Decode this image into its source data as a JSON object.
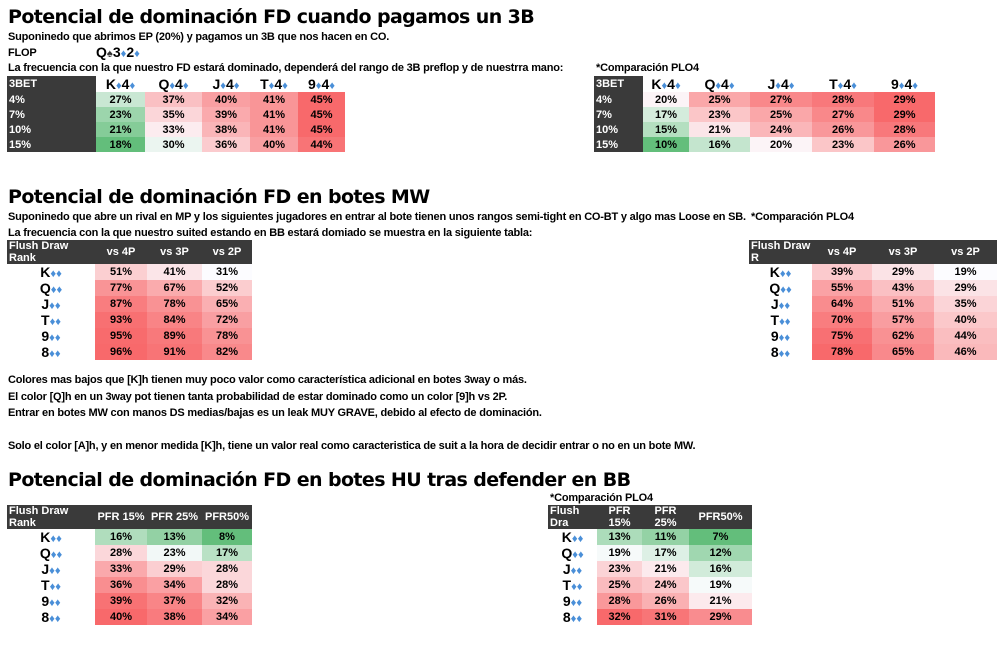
{
  "colors": {
    "green": "#63BE7B",
    "white": "#FCFCFF",
    "red": "#F8696B",
    "header": "#3a3a3a",
    "suit": "#4a8fd8"
  },
  "section1": {
    "title": "Potencial de dominación FD cuando pagamos un 3B",
    "intro": "Suponinedo que abrimos EP (20%) y pagamos un 3B que nos hacen en CO.",
    "flop_label": "FLOP",
    "flop_cards": "Q♠3♦2♦",
    "frequency_text": "La frecuencia con la que nuestro FD estará dominado, dependerá del rango de 3B preflop y de nuestrra mano:",
    "compare_label": "*Comparación PLO4",
    "main_table": {
      "scale": "green-white-red",
      "corner": "3BET",
      "columns": [
        "K♦4♦",
        "Q♦4♦",
        "J♦4♦",
        "T♦4♦",
        "9♦4♦"
      ],
      "rows": [
        {
          "label": "4%",
          "values": [
            27,
            37,
            40,
            41,
            45
          ]
        },
        {
          "label": "7%",
          "values": [
            23,
            35,
            39,
            41,
            45
          ]
        },
        {
          "label": "10%",
          "values": [
            21,
            33,
            38,
            41,
            45
          ]
        },
        {
          "label": "15%",
          "values": [
            18,
            30,
            36,
            40,
            44
          ]
        }
      ]
    },
    "compare_table": {
      "scale": "green-white-red",
      "corner": "3BET",
      "columns": [
        "K♦4♦",
        "Q♦4♦",
        "J♦4♦",
        "T♦4♦",
        "9♦4♦"
      ],
      "rows": [
        {
          "label": "4%",
          "values": [
            20,
            25,
            27,
            28,
            29
          ]
        },
        {
          "label": "7%",
          "values": [
            17,
            23,
            25,
            27,
            29
          ]
        },
        {
          "label": "10%",
          "values": [
            15,
            21,
            24,
            26,
            28
          ]
        },
        {
          "label": "15%",
          "values": [
            10,
            16,
            20,
            23,
            26
          ]
        }
      ]
    }
  },
  "section2": {
    "title": "Potencial de dominación FD en botes MW",
    "intro": "Suponinedo que abre un rival en MP y los siguientes jugadores en entrar al bote tienen unos rangos semi-tight en CO-BT y algo mas Loose en SB.",
    "frequency_text": "La frecuencia con la que nuestro suited estando en BB estará domiado se muestra en la siguiente tabla:",
    "compare_label": "*Comparación PLO4",
    "main_table": {
      "scale": "white-red",
      "corner": "Flush Draw Rank",
      "columns": [
        "vs 4P",
        "vs 3P",
        "vs 2P"
      ],
      "rows": [
        {
          "label": "K♦♦",
          "values": [
            51,
            41,
            31
          ]
        },
        {
          "label": "Q♦♦",
          "values": [
            77,
            67,
            52
          ]
        },
        {
          "label": "J♦♦",
          "values": [
            87,
            78,
            65
          ]
        },
        {
          "label": "T♦♦",
          "values": [
            93,
            84,
            72
          ]
        },
        {
          "label": "9♦♦",
          "values": [
            95,
            89,
            78
          ]
        },
        {
          "label": "8♦♦",
          "values": [
            96,
            91,
            82
          ]
        }
      ]
    },
    "compare_table": {
      "scale": "white-red",
      "corner": "Flush Draw R",
      "columns": [
        "vs 4P",
        "vs 3P",
        "vs 2P"
      ],
      "rows": [
        {
          "label": "K♦♦",
          "values": [
            39,
            29,
            19
          ]
        },
        {
          "label": "Q♦♦",
          "values": [
            55,
            43,
            29
          ]
        },
        {
          "label": "J♦♦",
          "values": [
            64,
            51,
            35
          ]
        },
        {
          "label": "T♦♦",
          "values": [
            70,
            57,
            40
          ]
        },
        {
          "label": "9♦♦",
          "values": [
            75,
            62,
            44
          ]
        },
        {
          "label": "8♦♦",
          "values": [
            78,
            65,
            46
          ]
        }
      ]
    },
    "notes": [
      "Colores mas bajos que [K]h tienen muy poco valor como característica adicional en botes 3way o más.",
      "El color [Q]h en un 3way pot tienen tanta probabilidad de estar dominado como un color [9]h vs 2P.",
      "Entrar en botes MW con manos DS medias/bajas es un leak MUY GRAVE, debido al efecto de dominación.",
      "Solo el color [A]h, y en menor medida [K]h, tiene un valor real como caracteristica de suit a la hora de decidir entrar o no en un bote MW."
    ]
  },
  "section3": {
    "title": "Potencial de dominación FD en botes HU tras defender en BB",
    "compare_label": "*Comparación PLO4",
    "main_table": {
      "scale": "green-white-red",
      "corner": "Flush Draw Rank",
      "columns": [
        "PFR 15%",
        "PFR 25%",
        "PFR50%"
      ],
      "rows": [
        {
          "label": "K♦♦",
          "values": [
            16,
            13,
            8
          ]
        },
        {
          "label": "Q♦♦",
          "values": [
            28,
            23,
            17
          ]
        },
        {
          "label": "J♦♦",
          "values": [
            33,
            29,
            28
          ]
        },
        {
          "label": "T♦♦",
          "values": [
            36,
            34,
            28
          ]
        },
        {
          "label": "9♦♦",
          "values": [
            39,
            37,
            32
          ]
        },
        {
          "label": "8♦♦",
          "values": [
            40,
            38,
            34
          ]
        }
      ]
    },
    "compare_table": {
      "scale": "green-white-red",
      "corner": "Flush Dra",
      "columns": [
        "PFR 15%",
        "PFR 25%",
        "PFR50%"
      ],
      "rows": [
        {
          "label": "K♦♦",
          "values": [
            13,
            11,
            7
          ]
        },
        {
          "label": "Q♦♦",
          "values": [
            19,
            17,
            12
          ]
        },
        {
          "label": "J♦♦",
          "values": [
            23,
            21,
            16
          ]
        },
        {
          "label": "T♦♦",
          "values": [
            25,
            24,
            19
          ]
        },
        {
          "label": "9♦♦",
          "values": [
            28,
            26,
            21
          ]
        },
        {
          "label": "8♦♦",
          "values": [
            32,
            31,
            29
          ]
        }
      ]
    }
  }
}
